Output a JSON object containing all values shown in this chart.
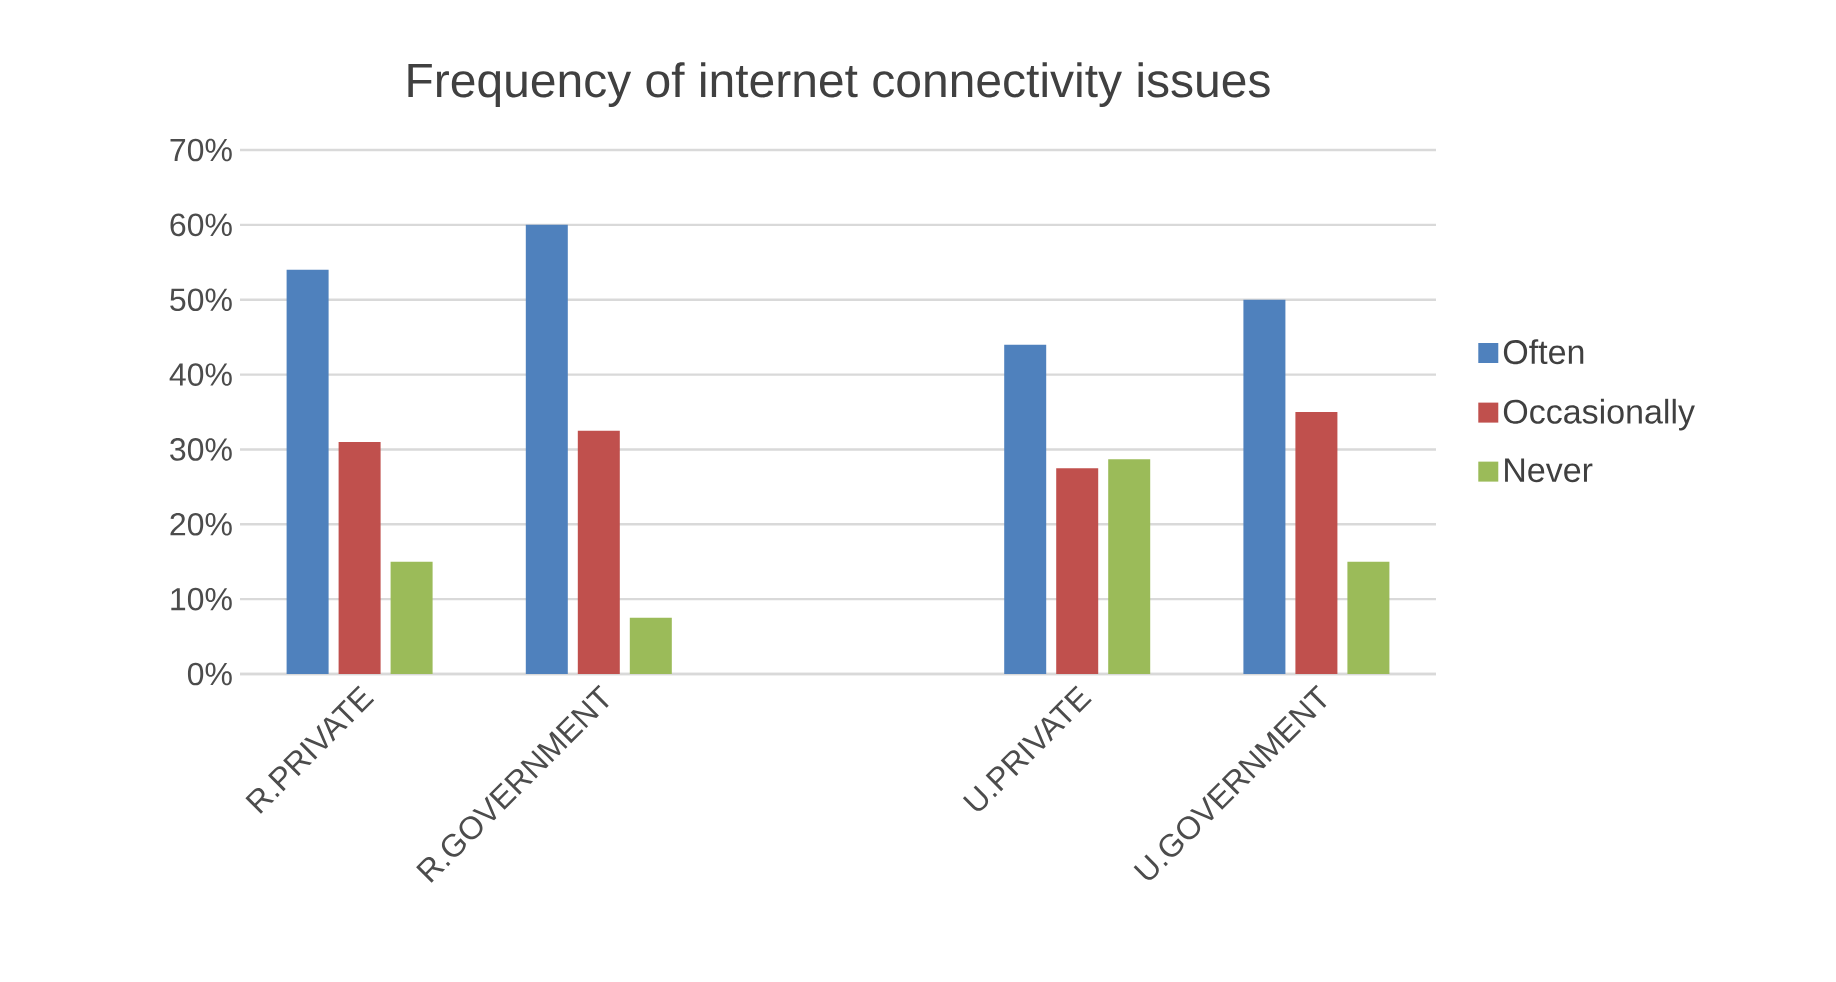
{
  "chart_data": {
    "type": "bar",
    "title": "Frequency of internet connectivity issues",
    "categories": [
      "R.PRIVATE",
      "R.GOVERNMENT",
      null,
      "U.PRIVATE",
      "U.GOVERNMENT"
    ],
    "series": [
      {
        "name": "Often",
        "color": "#4f81bd",
        "values": [
          54,
          60,
          null,
          44,
          50
        ]
      },
      {
        "name": "Occasionally",
        "color": "#c0504d",
        "values": [
          31,
          32.5,
          null,
          27.5,
          35
        ]
      },
      {
        "name": "Never",
        "color": "#9bbb59",
        "values": [
          15,
          7.5,
          null,
          28.7,
          15
        ]
      }
    ],
    "ylim": [
      0,
      70
    ],
    "yticks": [
      {
        "value": 0,
        "label": "0%"
      },
      {
        "value": 10,
        "label": "10%"
      },
      {
        "value": 20,
        "label": "20%"
      },
      {
        "value": 30,
        "label": "30%"
      },
      {
        "value": 40,
        "label": "40%"
      },
      {
        "value": 50,
        "label": "50%"
      },
      {
        "value": 60,
        "label": "60%"
      },
      {
        "value": 70,
        "label": "70%"
      }
    ],
    "grid": "y",
    "legend": "right"
  }
}
